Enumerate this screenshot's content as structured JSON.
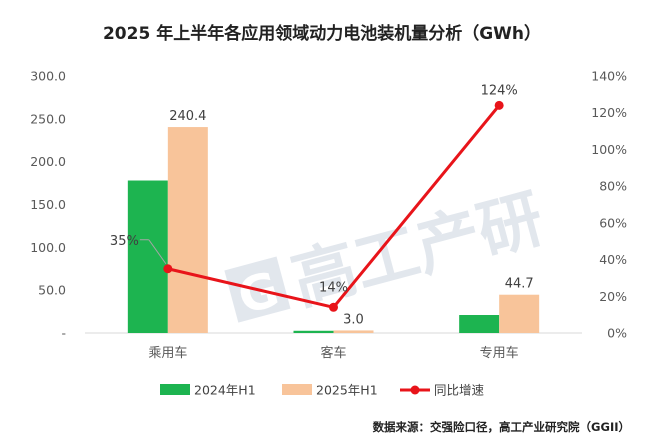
{
  "chart_data": {
    "type": "bar",
    "title": "2025 年上半年各应用领域动力电池装机量分析（GWh）",
    "categories": [
      "乘用车",
      "客车",
      "专用车"
    ],
    "series": [
      {
        "name": "2024年H1",
        "kind": "bar",
        "axis": "left",
        "color": "#1db450",
        "values": [
          178,
          2.6,
          21
        ],
        "labels": [
          "",
          "",
          ""
        ]
      },
      {
        "name": "2025年H1",
        "kind": "bar",
        "axis": "left",
        "color": "#f8c49a",
        "values": [
          240.4,
          3.0,
          44.7
        ],
        "labels": [
          "240.4",
          "3.0",
          "44.7"
        ]
      },
      {
        "name": "同比增速",
        "kind": "line",
        "axis": "right",
        "color": "#e8141a",
        "values": [
          35,
          14,
          124
        ],
        "labels": [
          "35%",
          "14%",
          "124%"
        ]
      }
    ],
    "y_left": {
      "min": 0,
      "max": 300,
      "step": 50,
      "ticks": [
        "-",
        "50.0",
        "100.0",
        "150.0",
        "200.0",
        "250.0",
        "300.0"
      ]
    },
    "y_right": {
      "min": 0,
      "max": 140,
      "step": 20,
      "ticks": [
        "0%",
        "20%",
        "40%",
        "60%",
        "80%",
        "100%",
        "120%",
        "140%"
      ]
    },
    "grid": false,
    "legend_position": "bottom"
  },
  "watermark": {
    "text": "高工产研",
    "logo_letter": "G"
  },
  "source": "数据来源：交强险口径，高工产业研究院（GGII）"
}
